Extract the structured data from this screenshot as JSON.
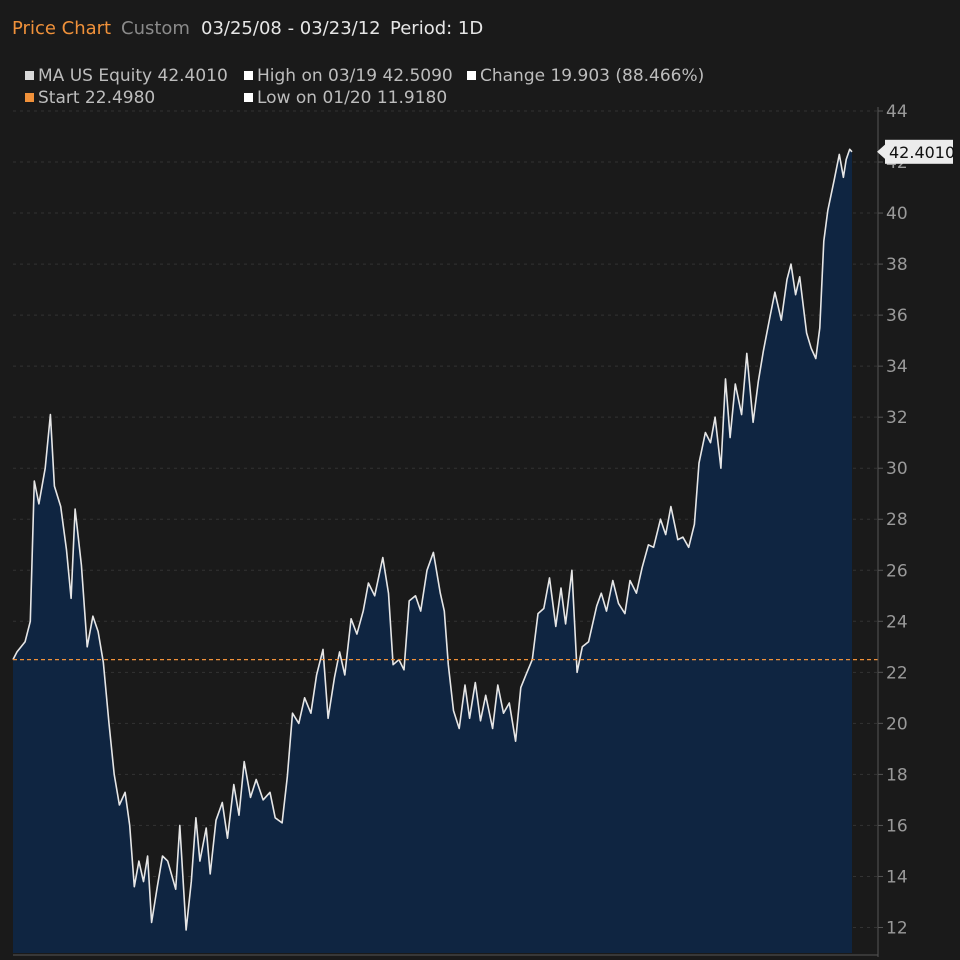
{
  "header": {
    "title": "Price Chart",
    "mode": "Custom",
    "date_range": "03/25/08 - 03/23/12",
    "period": "Period: 1D"
  },
  "legend": [
    {
      "id": "equity",
      "text": "MA US Equity 42.4010",
      "color": "#d9d9d9"
    },
    {
      "id": "high",
      "text": "High on 03/19 42.5090",
      "color": "#ffffff"
    },
    {
      "id": "change",
      "text": "Change 19.903 (88.466%)",
      "color": "#ffffff"
    },
    {
      "id": "start",
      "text": "Start 22.4980",
      "color": "#f0913a"
    },
    {
      "id": "low",
      "text": "Low on 01/20 11.9180",
      "color": "#ffffff"
    }
  ],
  "colors": {
    "background": "#1a1a1a",
    "area_fill": "#0f2541",
    "line": "#e6e6e6",
    "start_line": "#f0913a",
    "grid": "#333333",
    "axis_text": "#9a9a9a"
  },
  "chart_data": {
    "type": "area",
    "series": [
      {
        "name": "MA US Equity",
        "points": [
          [
            "2008-03-25",
            22.5
          ],
          [
            "2008-04-01",
            22.8
          ],
          [
            "2008-04-15",
            23.2
          ],
          [
            "2008-04-24",
            24.0
          ],
          [
            "2008-05-01",
            29.5
          ],
          [
            "2008-05-09",
            28.6
          ],
          [
            "2008-05-20",
            30.0
          ],
          [
            "2008-05-29",
            32.1
          ],
          [
            "2008-06-05",
            29.3
          ],
          [
            "2008-06-16",
            28.5
          ],
          [
            "2008-06-26",
            26.8
          ],
          [
            "2008-07-04",
            24.9
          ],
          [
            "2008-07-11",
            28.4
          ],
          [
            "2008-07-22",
            26.2
          ],
          [
            "2008-08-01",
            23.0
          ],
          [
            "2008-08-11",
            24.2
          ],
          [
            "2008-08-20",
            23.6
          ],
          [
            "2008-08-29",
            22.4
          ],
          [
            "2008-09-08",
            20.0
          ],
          [
            "2008-09-17",
            18.0
          ],
          [
            "2008-09-26",
            16.8
          ],
          [
            "2008-10-06",
            17.3
          ],
          [
            "2008-10-14",
            16.0
          ],
          [
            "2008-10-22",
            13.6
          ],
          [
            "2008-10-30",
            14.6
          ],
          [
            "2008-11-07",
            13.8
          ],
          [
            "2008-11-14",
            14.8
          ],
          [
            "2008-11-21",
            12.2
          ],
          [
            "2008-12-01",
            13.6
          ],
          [
            "2008-12-10",
            14.8
          ],
          [
            "2008-12-19",
            14.6
          ],
          [
            "2009-01-02",
            13.5
          ],
          [
            "2009-01-09",
            16.0
          ],
          [
            "2009-01-20",
            11.9
          ],
          [
            "2009-01-29",
            13.8
          ],
          [
            "2009-02-06",
            16.3
          ],
          [
            "2009-02-13",
            14.6
          ],
          [
            "2009-02-24",
            15.9
          ],
          [
            "2009-03-03",
            14.1
          ],
          [
            "2009-03-13",
            16.2
          ],
          [
            "2009-03-24",
            16.9
          ],
          [
            "2009-04-02",
            15.5
          ],
          [
            "2009-04-13",
            17.6
          ],
          [
            "2009-04-22",
            16.4
          ],
          [
            "2009-05-01",
            18.5
          ],
          [
            "2009-05-12",
            17.1
          ],
          [
            "2009-05-22",
            17.8
          ],
          [
            "2009-06-03",
            17.0
          ],
          [
            "2009-06-15",
            17.3
          ],
          [
            "2009-06-24",
            16.3
          ],
          [
            "2009-07-06",
            16.1
          ],
          [
            "2009-07-15",
            17.9
          ],
          [
            "2009-07-24",
            20.4
          ],
          [
            "2009-08-04",
            20.0
          ],
          [
            "2009-08-14",
            21.0
          ],
          [
            "2009-08-25",
            20.4
          ],
          [
            "2009-09-04",
            21.9
          ],
          [
            "2009-09-15",
            22.9
          ],
          [
            "2009-09-24",
            20.2
          ],
          [
            "2009-10-05",
            21.8
          ],
          [
            "2009-10-14",
            22.8
          ],
          [
            "2009-10-23",
            21.9
          ],
          [
            "2009-11-03",
            24.1
          ],
          [
            "2009-11-13",
            23.5
          ],
          [
            "2009-11-24",
            24.4
          ],
          [
            "2009-12-03",
            25.5
          ],
          [
            "2009-12-14",
            25.0
          ],
          [
            "2009-12-28",
            26.5
          ],
          [
            "2010-01-07",
            25.1
          ],
          [
            "2010-01-15",
            22.3
          ],
          [
            "2010-01-25",
            22.5
          ],
          [
            "2010-02-03",
            22.1
          ],
          [
            "2010-02-12",
            24.8
          ],
          [
            "2010-02-23",
            25.0
          ],
          [
            "2010-03-04",
            24.4
          ],
          [
            "2010-03-15",
            26.0
          ],
          [
            "2010-03-26",
            26.7
          ],
          [
            "2010-04-07",
            25.1
          ],
          [
            "2010-04-14",
            24.4
          ],
          [
            "2010-04-21",
            22.3
          ],
          [
            "2010-04-30",
            20.5
          ],
          [
            "2010-05-10",
            19.8
          ],
          [
            "2010-05-20",
            21.5
          ],
          [
            "2010-05-28",
            20.2
          ],
          [
            "2010-06-07",
            21.6
          ],
          [
            "2010-06-16",
            20.1
          ],
          [
            "2010-06-25",
            21.1
          ],
          [
            "2010-07-07",
            19.8
          ],
          [
            "2010-07-16",
            21.5
          ],
          [
            "2010-07-26",
            20.4
          ],
          [
            "2010-08-05",
            20.8
          ],
          [
            "2010-08-16",
            19.3
          ],
          [
            "2010-08-25",
            21.4
          ],
          [
            "2010-09-03",
            21.9
          ],
          [
            "2010-09-14",
            22.5
          ],
          [
            "2010-09-24",
            24.3
          ],
          [
            "2010-10-04",
            24.5
          ],
          [
            "2010-10-14",
            25.7
          ],
          [
            "2010-10-25",
            23.8
          ],
          [
            "2010-11-03",
            25.3
          ],
          [
            "2010-11-11",
            23.9
          ],
          [
            "2010-11-22",
            26.0
          ],
          [
            "2010-12-01",
            22.0
          ],
          [
            "2010-12-10",
            23.0
          ],
          [
            "2010-12-21",
            23.2
          ],
          [
            "2011-01-04",
            24.6
          ],
          [
            "2011-01-12",
            25.1
          ],
          [
            "2011-01-21",
            24.4
          ],
          [
            "2011-02-01",
            25.6
          ],
          [
            "2011-02-11",
            24.7
          ],
          [
            "2011-02-22",
            24.3
          ],
          [
            "2011-03-03",
            25.6
          ],
          [
            "2011-03-14",
            25.1
          ],
          [
            "2011-03-24",
            26.1
          ],
          [
            "2011-04-04",
            27.0
          ],
          [
            "2011-04-13",
            26.9
          ],
          [
            "2011-04-25",
            28.0
          ],
          [
            "2011-05-04",
            27.4
          ],
          [
            "2011-05-13",
            28.5
          ],
          [
            "2011-05-25",
            27.2
          ],
          [
            "2011-06-03",
            27.3
          ],
          [
            "2011-06-13",
            26.9
          ],
          [
            "2011-06-23",
            27.8
          ],
          [
            "2011-07-01",
            30.2
          ],
          [
            "2011-07-12",
            31.4
          ],
          [
            "2011-07-21",
            31.0
          ],
          [
            "2011-07-29",
            32.0
          ],
          [
            "2011-08-08",
            30.0
          ],
          [
            "2011-08-16",
            33.5
          ],
          [
            "2011-08-24",
            31.2
          ],
          [
            "2011-09-02",
            33.3
          ],
          [
            "2011-09-13",
            32.1
          ],
          [
            "2011-09-22",
            34.5
          ],
          [
            "2011-10-03",
            31.8
          ],
          [
            "2011-10-12",
            33.4
          ],
          [
            "2011-10-21",
            34.6
          ],
          [
            "2011-11-02",
            36.0
          ],
          [
            "2011-11-10",
            36.9
          ],
          [
            "2011-11-21",
            35.8
          ],
          [
            "2011-12-01",
            37.4
          ],
          [
            "2011-12-08",
            38.0
          ],
          [
            "2011-12-16",
            36.8
          ],
          [
            "2011-12-23",
            37.5
          ],
          [
            "2012-01-04",
            35.3
          ],
          [
            "2012-01-12",
            34.7
          ],
          [
            "2012-01-20",
            34.3
          ],
          [
            "2012-01-27",
            35.5
          ],
          [
            "2012-02-03",
            38.9
          ],
          [
            "2012-02-10",
            40.1
          ],
          [
            "2012-02-21",
            41.3
          ],
          [
            "2012-03-01",
            42.3
          ],
          [
            "2012-03-08",
            41.4
          ],
          [
            "2012-03-13",
            42.1
          ],
          [
            "2012-03-19",
            42.5
          ],
          [
            "2012-03-23",
            42.401
          ]
        ]
      }
    ],
    "reference_line": {
      "label": "Start",
      "value": 22.498
    },
    "last_value_label": "42.4010",
    "x_range": [
      "2008-03-25",
      "2012-03-23"
    ],
    "ylim": [
      11,
      44
    ],
    "y_ticks": [
      12,
      14,
      16,
      18,
      20,
      22,
      24,
      26,
      28,
      30,
      32,
      34,
      36,
      38,
      40,
      42,
      44
    ],
    "grid": true,
    "y_axis_position": "right"
  }
}
